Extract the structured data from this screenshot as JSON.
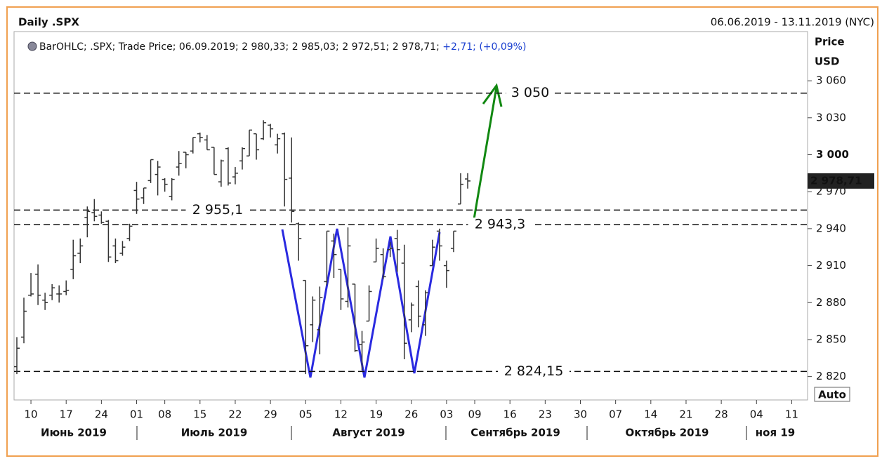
{
  "chart_data": {
    "type": "ohlc",
    "title": "Daily .SPX",
    "date_range": "06.06.2019 - 13.11.2019 (NYC)",
    "info_text": "BarOHLC; .SPX; Trade Price; 06.09.2019; 2 980,33; 2 985,03; 2 972,51; 2 978,71;",
    "info_change": "+2,71; (+0,09%)",
    "y_label": "Price",
    "y_unit": "USD",
    "auto_button": "Auto",
    "color": "#333333",
    "x": [
      "2019-06-06",
      "2019-06-07",
      "2019-06-10",
      "2019-06-11",
      "2019-06-12",
      "2019-06-13",
      "2019-06-14",
      "2019-06-17",
      "2019-06-18",
      "2019-06-19",
      "2019-06-20",
      "2019-06-21",
      "2019-06-24",
      "2019-06-25",
      "2019-06-26",
      "2019-06-27",
      "2019-06-28",
      "2019-07-01",
      "2019-07-02",
      "2019-07-03",
      "2019-07-05",
      "2019-07-08",
      "2019-07-09",
      "2019-07-10",
      "2019-07-11",
      "2019-07-12",
      "2019-07-15",
      "2019-07-16",
      "2019-07-17",
      "2019-07-18",
      "2019-07-19",
      "2019-07-22",
      "2019-07-23",
      "2019-07-24",
      "2019-07-25",
      "2019-07-26",
      "2019-07-29",
      "2019-07-30",
      "2019-07-31",
      "2019-08-01",
      "2019-08-02",
      "2019-08-05",
      "2019-08-06",
      "2019-08-07",
      "2019-08-08",
      "2019-08-09",
      "2019-08-12",
      "2019-08-13",
      "2019-08-14",
      "2019-08-15",
      "2019-08-16",
      "2019-08-19",
      "2019-08-20",
      "2019-08-21",
      "2019-08-22",
      "2019-08-23",
      "2019-08-26",
      "2019-08-27",
      "2019-08-28",
      "2019-08-29",
      "2019-08-30",
      "2019-09-03",
      "2019-09-04",
      "2019-09-05",
      "2019-09-06"
    ],
    "open": [
      2828,
      2852,
      2886,
      2903,
      2882,
      2886,
      2887,
      2889,
      2907,
      2920,
      2949,
      2953,
      2951,
      2946,
      2926,
      2920,
      2932,
      2971,
      2965,
      2979,
      2984,
      2980,
      2966,
      2990,
      3002,
      3003,
      3017,
      3012,
      3006,
      2978,
      3005,
      2982,
      2995,
      2999,
      3017,
      3013,
      3024,
      3008,
      3017,
      2981,
      2944,
      2898,
      2862,
      2858,
      2897,
      2930,
      2907,
      2881,
      2895,
      2846,
      2865,
      2913,
      2919,
      2923,
      2932,
      2912,
      2866,
      2893,
      2862,
      2910,
      2938,
      2910,
      2924,
      2960,
      2980.33
    ],
    "high": [
      2852,
      2884,
      2904,
      2911,
      2888,
      2895,
      2894,
      2898,
      2931,
      2932,
      2958,
      2964,
      2954,
      2947,
      2932,
      2930,
      2944,
      2978,
      2973,
      2996,
      2995,
      2981,
      2981,
      3003,
      3002,
      3014,
      3018,
      3016,
      3006,
      2996,
      3006,
      2990,
      3006,
      3020,
      3017,
      3028,
      3025,
      3017,
      3018,
      3014,
      2945,
      2898,
      2885,
      2893,
      2938,
      2936,
      2907,
      2941,
      2895,
      2857,
      2894,
      2932,
      2924,
      2929,
      2939,
      2927,
      2880,
      2898,
      2890,
      2931,
      2940,
      2914,
      2938,
      2985,
      2985.03
    ],
    "low": [
      2822,
      2847,
      2885,
      2878,
      2874,
      2882,
      2880,
      2886,
      2899,
      2912,
      2933,
      2946,
      2944,
      2913,
      2912,
      2918,
      2930,
      2952,
      2960,
      2977,
      2967,
      2970,
      2963,
      2983,
      2989,
      3001,
      3010,
      3004,
      2984,
      2974,
      2975,
      2976,
      2988,
      2999,
      2996,
      3012,
      3014,
      3001,
      2958,
      2945,
      2914,
      2822,
      2848,
      2838,
      2894,
      2900,
      2874,
      2876,
      2840,
      2825,
      2865,
      2913,
      2899,
      2917,
      2905,
      2834,
      2856,
      2860,
      2853,
      2910,
      2914,
      2892,
      2921,
      2960,
      2972.51
    ],
    "close": [
      2843,
      2873,
      2887,
      2886,
      2880,
      2892,
      2887,
      2890,
      2918,
      2926,
      2954,
      2950,
      2945,
      2917,
      2914,
      2925,
      2942,
      2964,
      2973,
      2996,
      2990,
      2976,
      2980,
      2993,
      3000,
      3014,
      3014,
      3004,
      2984,
      2995,
      2977,
      2985,
      3005,
      3020,
      3004,
      3026,
      3021,
      3013,
      2980,
      2954,
      2932,
      2845,
      2882,
      2884,
      2938,
      2919,
      2883,
      2926,
      2841,
      2848,
      2889,
      2924,
      2901,
      2924,
      2923,
      2847,
      2878,
      2869,
      2888,
      2925,
      2926,
      2906,
      2938,
      2976,
      2978.71
    ],
    "xlim": [
      "2019-06-06",
      "2019-11-13"
    ],
    "xticks": [
      {
        "value": "2019-06-10",
        "label": "10"
      },
      {
        "value": "2019-06-17",
        "label": "17"
      },
      {
        "value": "2019-06-24",
        "label": "24"
      },
      {
        "value": "2019-07-01",
        "label": "01"
      },
      {
        "value": "2019-07-08",
        "label": "08"
      },
      {
        "value": "2019-07-15",
        "label": "15"
      },
      {
        "value": "2019-07-22",
        "label": "22"
      },
      {
        "value": "2019-07-29",
        "label": "29"
      },
      {
        "value": "2019-08-05",
        "label": "05"
      },
      {
        "value": "2019-08-12",
        "label": "12"
      },
      {
        "value": "2019-08-19",
        "label": "19"
      },
      {
        "value": "2019-08-26",
        "label": "26"
      },
      {
        "value": "2019-09-03",
        "label": "03"
      },
      {
        "value": "2019-09-09",
        "label": "09"
      },
      {
        "value": "2019-09-16",
        "label": "16"
      },
      {
        "value": "2019-09-23",
        "label": "23"
      },
      {
        "value": "2019-09-30",
        "label": "30"
      },
      {
        "value": "2019-10-07",
        "label": "07"
      },
      {
        "value": "2019-10-14",
        "label": "14"
      },
      {
        "value": "2019-10-21",
        "label": "21"
      },
      {
        "value": "2019-10-28",
        "label": "28"
      },
      {
        "value": "2019-11-04",
        "label": "04"
      },
      {
        "value": "2019-11-11",
        "label": "11"
      }
    ],
    "months": [
      "Июнь 2019",
      "Июль 2019",
      "Август 2019",
      "Сентябрь 2019",
      "Октябрь 2019",
      "ноя 19"
    ],
    "ylim": [
      2801,
      3080
    ],
    "yticks": [
      {
        "value": 3060,
        "label": "3 060"
      },
      {
        "value": 3030,
        "label": "3 030"
      },
      {
        "value": 3000,
        "label": "3 000"
      },
      {
        "value": 2970,
        "label": "2 970"
      },
      {
        "value": 2940,
        "label": "2 940"
      },
      {
        "value": 2910,
        "label": "2 910"
      },
      {
        "value": 2880,
        "label": "2 880"
      },
      {
        "value": 2850,
        "label": "2 850"
      },
      {
        "value": 2820,
        "label": "2 820"
      }
    ],
    "last_price": {
      "value": 2978.71,
      "label": "2 978,71"
    },
    "levels": [
      {
        "value": 3050,
        "label": "3 050"
      },
      {
        "value": 2955.1,
        "label": "2 955,1"
      },
      {
        "value": 2943.3,
        "label": "2 943,3"
      },
      {
        "value": 2824.15,
        "label": "2 824,15"
      }
    ]
  }
}
